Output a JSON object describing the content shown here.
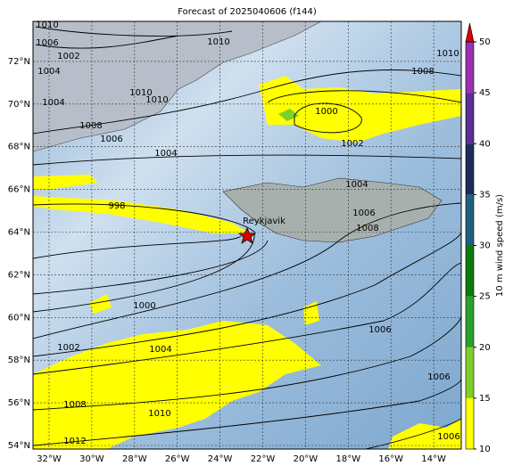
{
  "title": "Forecast of 2025040606 (f144)",
  "lat_labels": [
    "54°N",
    "56°N",
    "58°N",
    "60°N",
    "62°N",
    "64°N",
    "66°N",
    "68°N",
    "70°N",
    "72°N"
  ],
  "lon_labels": [
    "32°W",
    "30°W",
    "28°W",
    "26°W",
    "24°W",
    "22°W",
    "20°W",
    "18°W",
    "16°W",
    "14°W"
  ],
  "contour_labels": [
    "1010",
    "1006",
    "1002",
    "1004",
    "1004",
    "1008",
    "1006",
    "1010",
    "1010",
    "1010",
    "1008",
    "1010",
    "1000",
    "1002",
    "1004",
    "998",
    "1004",
    "1006",
    "1008",
    "1000",
    "1002",
    "1004",
    "1006",
    "1006",
    "1008",
    "1010",
    "1012",
    "1006"
  ],
  "place": "Reykjavik",
  "colorbar": {
    "label": "10 m wind speed (m/s)",
    "ticks": [
      10,
      15,
      20,
      25,
      30,
      35,
      40,
      45,
      50
    ],
    "colors": [
      "#ffff00",
      "#7fcf2a",
      "#2ca02c",
      "#0a7a0a",
      "#1f5f7f",
      "#1e2c5a",
      "#5a2f8f",
      "#9b30b0"
    ],
    "extend_color": "#e00000"
  }
}
